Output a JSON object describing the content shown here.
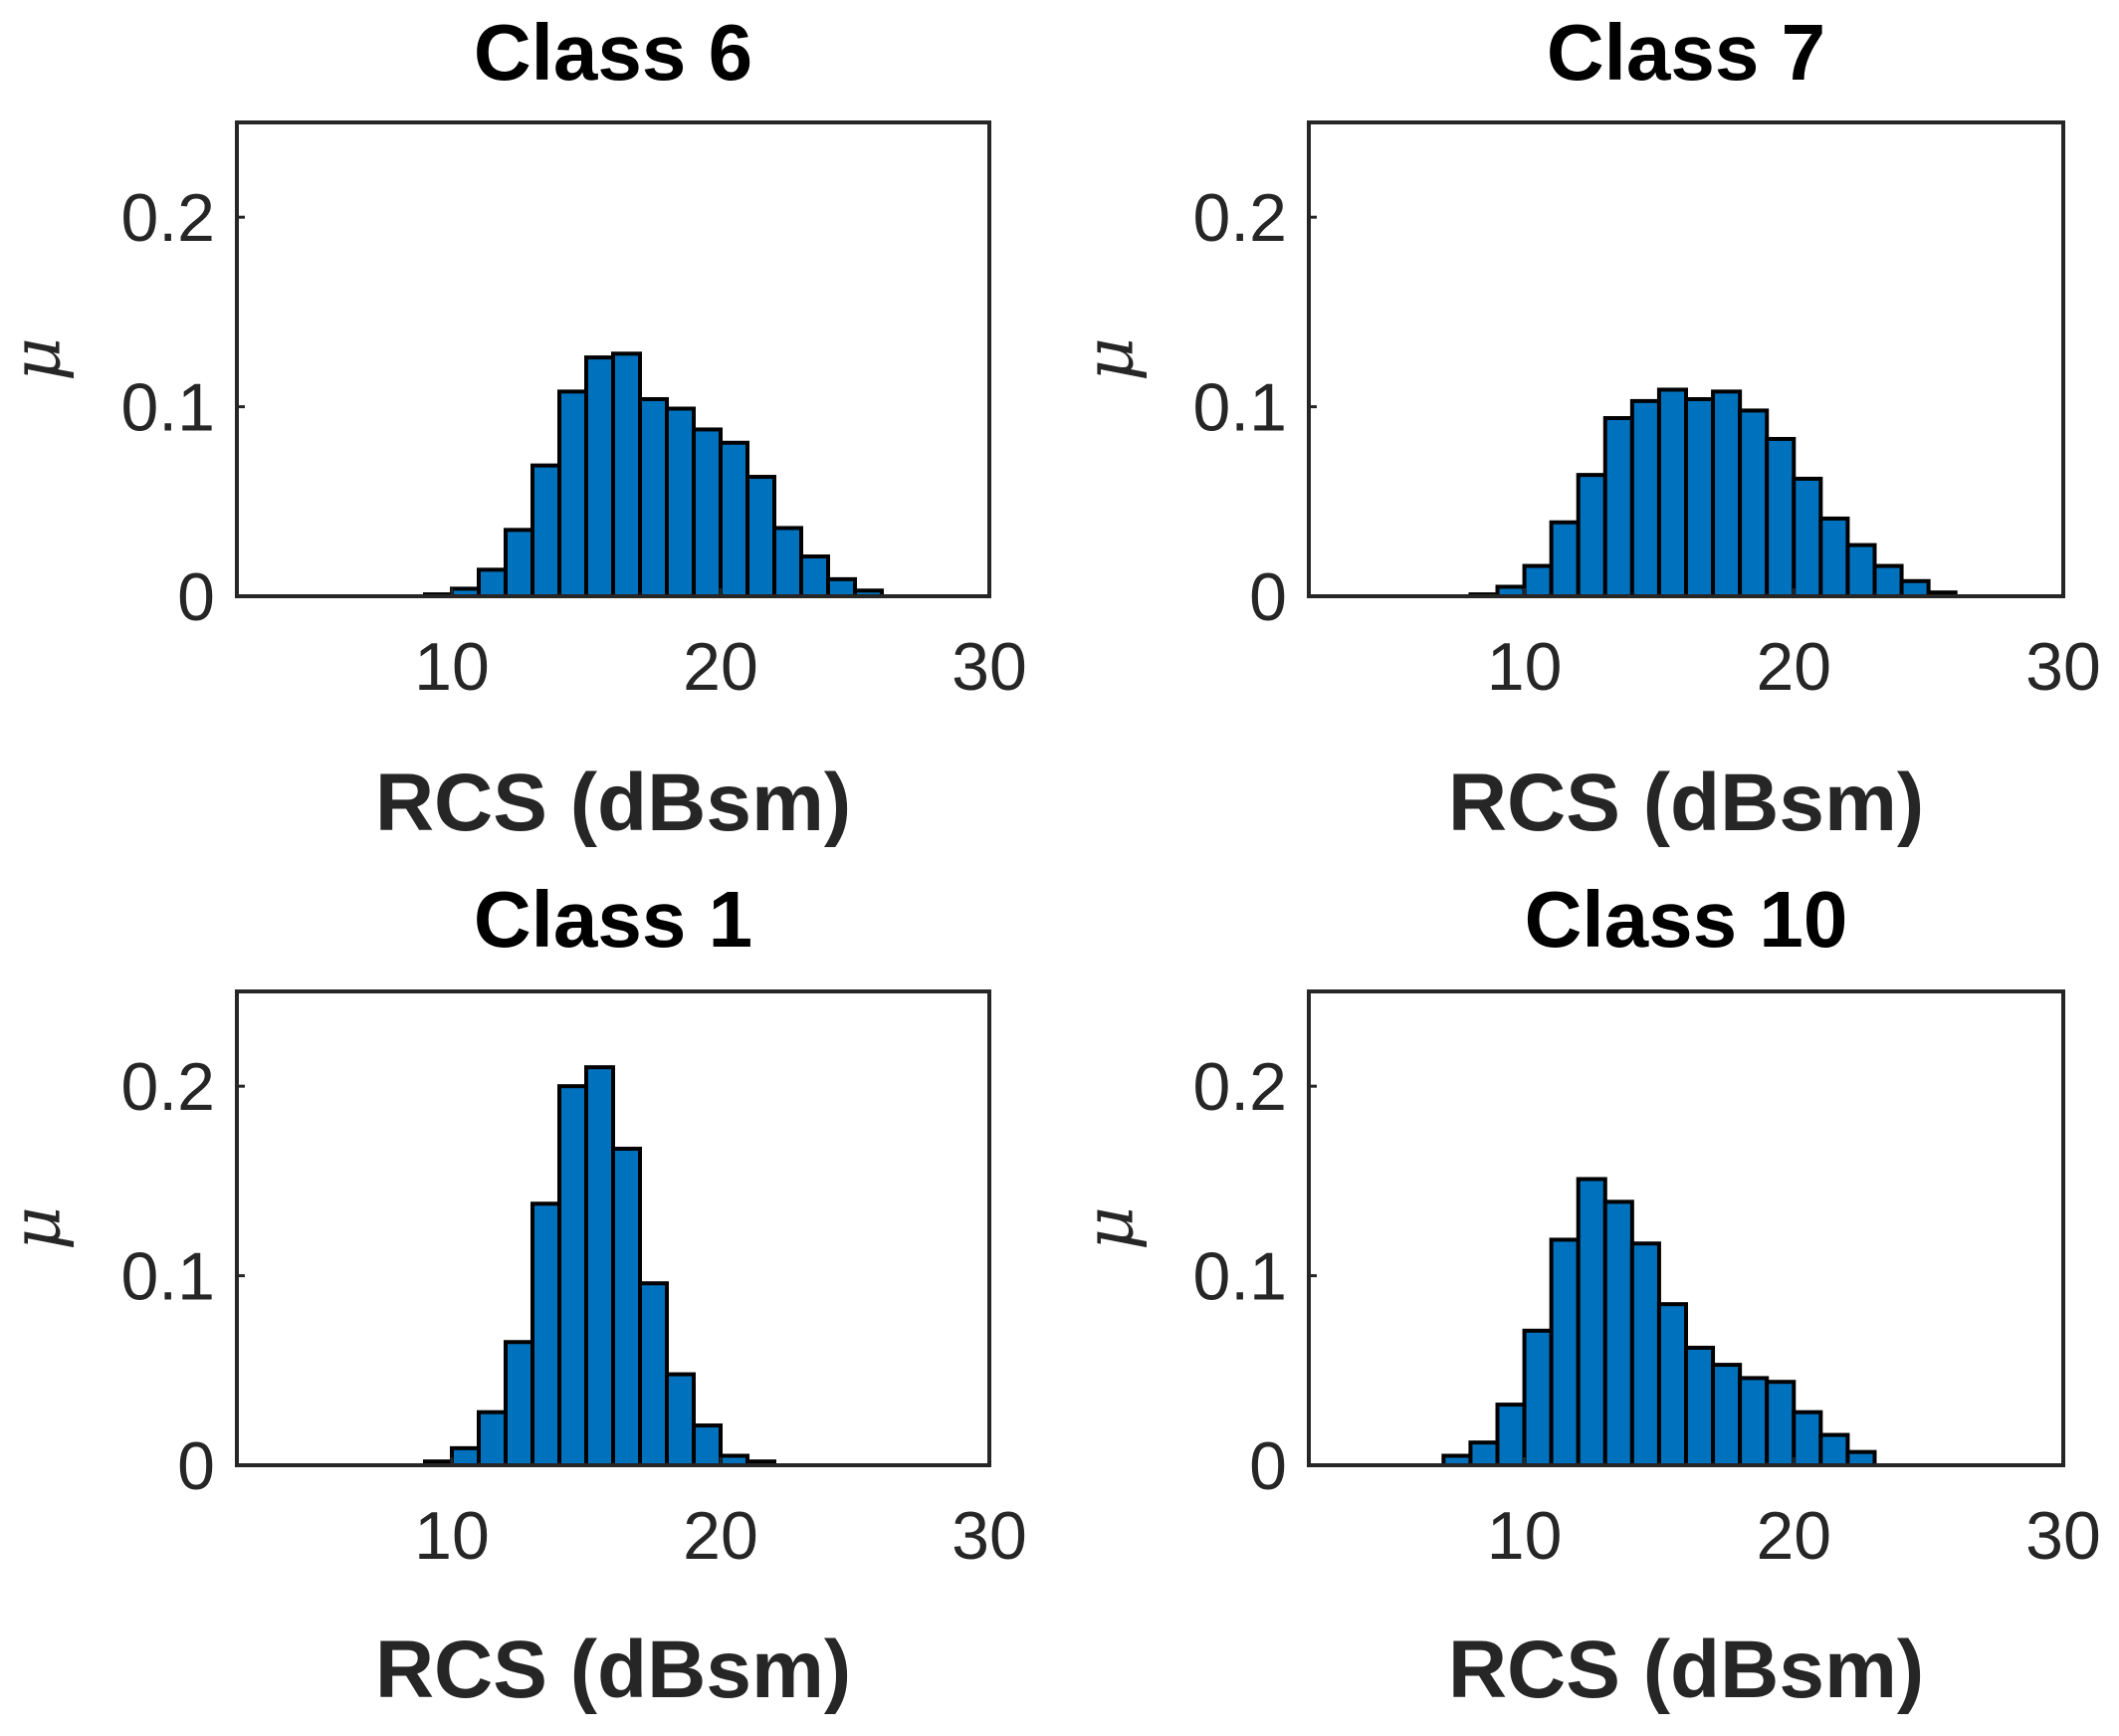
{
  "chart_data": [
    {
      "type": "bar",
      "title": "Class 6",
      "xlabel": "RCS (dBsm)",
      "ylabel": "μ",
      "xlim": [
        2,
        30
      ],
      "ylim": [
        0,
        0.25
      ],
      "xticks": [
        10,
        20,
        30
      ],
      "yticks": [
        0,
        0.1,
        0.2
      ],
      "xtick_labels": [
        "10",
        "20",
        "30"
      ],
      "ytick_labels": [
        "0",
        "0.1",
        "0.2"
      ],
      "bin_width": 1,
      "bin_starts": [
        9,
        10,
        11,
        12,
        13,
        14,
        15,
        16,
        17,
        18,
        19,
        20,
        21,
        22,
        23,
        24,
        25
      ],
      "values": [
        0.001,
        0.004,
        0.014,
        0.035,
        0.069,
        0.108,
        0.126,
        0.128,
        0.104,
        0.099,
        0.088,
        0.081,
        0.063,
        0.036,
        0.021,
        0.009,
        0.003
      ],
      "bar_color": "#0072BD"
    },
    {
      "type": "bar",
      "title": "Class 7",
      "xlabel": "RCS (dBsm)",
      "ylabel": "μ",
      "xlim": [
        2,
        30
      ],
      "ylim": [
        0,
        0.25
      ],
      "xticks": [
        10,
        20,
        30
      ],
      "yticks": [
        0,
        0.1,
        0.2
      ],
      "xtick_labels": [
        "10",
        "20",
        "30"
      ],
      "ytick_labels": [
        "0",
        "0.1",
        "0.2"
      ],
      "bin_width": 1,
      "bin_starts": [
        8,
        9,
        10,
        11,
        12,
        13,
        14,
        15,
        16,
        17,
        18,
        19,
        20,
        21,
        22,
        23,
        24,
        25
      ],
      "values": [
        0.001,
        0.005,
        0.016,
        0.039,
        0.064,
        0.094,
        0.103,
        0.109,
        0.104,
        0.108,
        0.098,
        0.083,
        0.062,
        0.041,
        0.027,
        0.016,
        0.008,
        0.002
      ],
      "bar_color": "#0072BD"
    },
    {
      "type": "bar",
      "title": "Class 1",
      "xlabel": "RCS (dBsm)",
      "ylabel": "μ",
      "xlim": [
        2,
        30
      ],
      "ylim": [
        0,
        0.25
      ],
      "xticks": [
        10,
        20,
        30
      ],
      "yticks": [
        0,
        0.1,
        0.2
      ],
      "xtick_labels": [
        "10",
        "20",
        "30"
      ],
      "ytick_labels": [
        "0",
        "0.1",
        "0.2"
      ],
      "bin_width": 1,
      "bin_starts": [
        9,
        10,
        11,
        12,
        13,
        14,
        15,
        16,
        17,
        18,
        19,
        20,
        21
      ],
      "values": [
        0.002,
        0.009,
        0.028,
        0.065,
        0.138,
        0.2,
        0.21,
        0.167,
        0.096,
        0.048,
        0.021,
        0.005,
        0.002
      ],
      "bar_color": "#0072BD"
    },
    {
      "type": "bar",
      "title": "Class 10",
      "xlabel": "RCS (dBsm)",
      "ylabel": "μ",
      "xlim": [
        2,
        30
      ],
      "ylim": [
        0,
        0.25
      ],
      "xticks": [
        10,
        20,
        30
      ],
      "yticks": [
        0,
        0.1,
        0.2
      ],
      "xtick_labels": [
        "10",
        "20",
        "30"
      ],
      "ytick_labels": [
        "0",
        "0.1",
        "0.2"
      ],
      "bin_width": 1,
      "bin_starts": [
        7,
        8,
        9,
        10,
        11,
        12,
        13,
        14,
        15,
        16,
        17,
        18,
        19,
        20,
        21,
        22
      ],
      "values": [
        0.005,
        0.012,
        0.032,
        0.071,
        0.119,
        0.151,
        0.139,
        0.117,
        0.085,
        0.062,
        0.053,
        0.046,
        0.044,
        0.028,
        0.016,
        0.007
      ],
      "bar_color": "#0072BD"
    }
  ]
}
